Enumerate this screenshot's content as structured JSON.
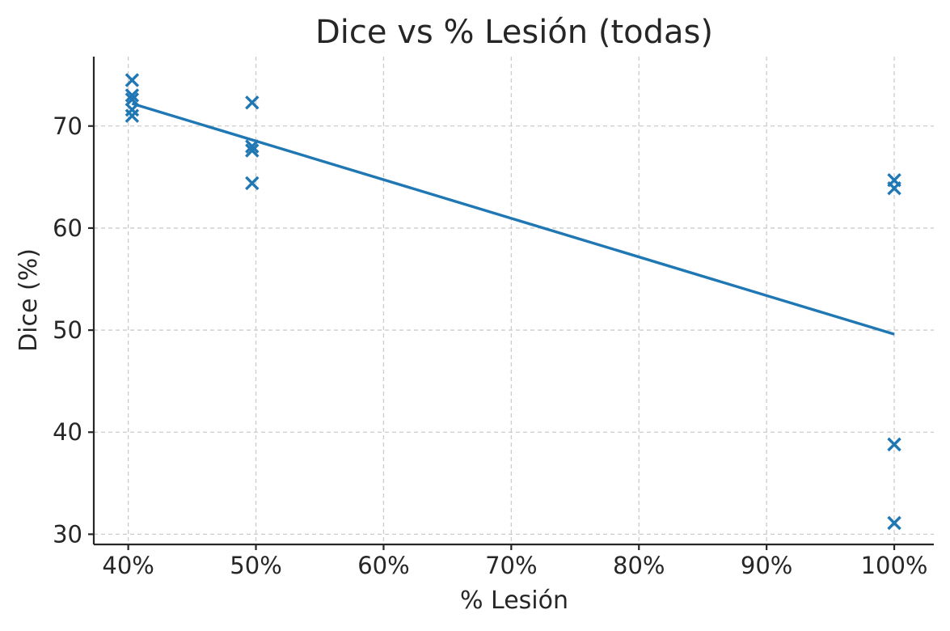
{
  "chart_data": {
    "type": "scatter",
    "title": "Dice vs % Lesión (todas)",
    "xlabel": "% Lesión",
    "ylabel": "Dice (%)",
    "xlim": [
      37.3,
      103.1
    ],
    "ylim": [
      29.0,
      76.8
    ],
    "x_ticks": [
      40,
      50,
      60,
      70,
      80,
      90,
      100
    ],
    "x_tick_labels": [
      "40%",
      "50%",
      "60%",
      "70%",
      "80%",
      "90%",
      "100%"
    ],
    "y_ticks": [
      30,
      40,
      50,
      60,
      70
    ],
    "y_tick_labels": [
      "30",
      "40",
      "50",
      "60",
      "70"
    ],
    "grid": true,
    "marker": "x",
    "color": "#1f77b4",
    "points": [
      {
        "x": 40.3,
        "y": 74.5
      },
      {
        "x": 40.3,
        "y": 73.0
      },
      {
        "x": 40.3,
        "y": 72.6
      },
      {
        "x": 40.3,
        "y": 71.6
      },
      {
        "x": 40.3,
        "y": 71.0
      },
      {
        "x": 49.7,
        "y": 72.3
      },
      {
        "x": 49.7,
        "y": 68.0
      },
      {
        "x": 49.7,
        "y": 67.6
      },
      {
        "x": 49.7,
        "y": 64.4
      },
      {
        "x": 100.0,
        "y": 64.7
      },
      {
        "x": 100.0,
        "y": 63.9
      },
      {
        "x": 100.0,
        "y": 38.8
      },
      {
        "x": 100.0,
        "y": 31.1
      }
    ],
    "trendline": {
      "x": [
        40.3,
        100.0
      ],
      "y": [
        72.2,
        49.6
      ]
    }
  }
}
